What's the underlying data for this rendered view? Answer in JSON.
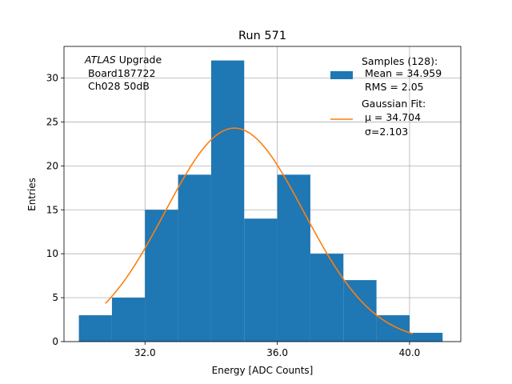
{
  "chart_data": {
    "type": "bar",
    "title": "Run 571",
    "xlabel": "Energy [ADC Counts]",
    "ylabel": "Entries",
    "xlim": [
      29.55,
      41.55
    ],
    "ylim": [
      0,
      33.6
    ],
    "grid": true,
    "xticks": [
      {
        "value": 32,
        "label": "32.0"
      },
      {
        "value": 36,
        "label": "36.0"
      },
      {
        "value": 40,
        "label": "40.0"
      }
    ],
    "yticks": [
      0,
      5,
      10,
      15,
      20,
      25,
      30
    ],
    "bin_edges": [
      30,
      31,
      32,
      33,
      34,
      35,
      36,
      37,
      38,
      39,
      40,
      41
    ],
    "counts": [
      3,
      5,
      15,
      19,
      32,
      14,
      19,
      10,
      7,
      3,
      1
    ],
    "bar_color": "#1f77b4",
    "fit_color": "#ff7f0e",
    "fit": {
      "amplitude": 24.3,
      "mu": 34.704,
      "sigma": 2.103,
      "x_range": [
        30.8,
        40.1
      ]
    },
    "annotation": [
      "ATLAS Upgrade",
      " Board187722",
      " Ch028 50dB"
    ],
    "legend": {
      "placement": "top-right",
      "samples": [
        "Samples (128):",
        " Mean = 34.959",
        " RMS = 2.05"
      ],
      "fit": [
        "Gaussian Fit:",
        " μ = 34.704",
        " σ=2.103"
      ]
    }
  }
}
